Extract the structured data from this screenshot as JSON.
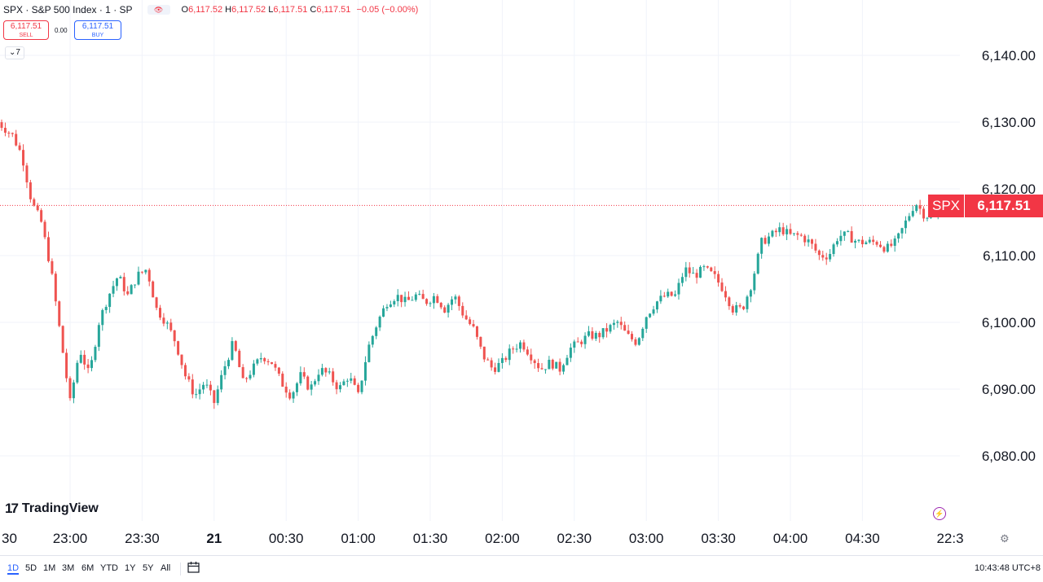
{
  "legend": {
    "symbol": "SPX · S&P 500 Index · 1 · SP",
    "open_label": "O",
    "open": "6,117.52",
    "high_label": "H",
    "high": "6,117.52",
    "low_label": "L",
    "low": "6,117.51",
    "close_label": "C",
    "close": "6,117.51",
    "change": "−0.05 (−0.00%)"
  },
  "trade": {
    "sell_price": "6,117.51",
    "sell_label": "SELL",
    "spread": "0.00",
    "buy_price": "6,117.51",
    "buy_label": "BUY"
  },
  "indicators_count": "7",
  "price_tag": {
    "symbol": "SPX",
    "value": "6,117.51"
  },
  "brand": "TradingView",
  "ranges": [
    "1D",
    "5D",
    "1M",
    "3M",
    "6M",
    "YTD",
    "1Y",
    "5Y",
    "All"
  ],
  "active_range": "1D",
  "clock": "10:43:48 UTC+8",
  "colors": {
    "up": "#26a69a",
    "down": "#ef5350",
    "price_tag": "#f23645",
    "text": "#131722",
    "grid": "#f0f3fa"
  },
  "icons": [
    "eye-icon",
    "calendar-icon",
    "lightning-icon",
    "gear-icon",
    "indicators-chevron-icon"
  ],
  "chart_data": {
    "type": "candlestick",
    "title": "SPX · S&P 500 Index · 1 · SP",
    "y_ticks": [
      6080,
      6090,
      6100,
      6110,
      6120,
      6130,
      6140
    ],
    "y_tick_labels": [
      "6,080.00",
      "6,090.00",
      "6,100.00",
      "6,110.00",
      "6,120.00",
      "6,130.00",
      "6,140.00"
    ],
    "x_ticks": [
      "30",
      "23:00",
      "23:30",
      "21",
      "00:30",
      "01:00",
      "01:30",
      "02:00",
      "02:30",
      "03:00",
      "03:30",
      "04:00",
      "04:30",
      "22:3"
    ],
    "ylim": [
      6071,
      6147
    ],
    "current_price": 6117.51,
    "grid": true,
    "close_path": [
      [
        "22:30",
        6130
      ],
      [
        "22:36",
        6128
      ],
      [
        "22:40",
        6125
      ],
      [
        "22:44",
        6118
      ],
      [
        "22:48",
        6115
      ],
      [
        "22:52",
        6108
      ],
      [
        "22:56",
        6098
      ],
      [
        "23:00",
        6088
      ],
      [
        "23:04",
        6096
      ],
      [
        "23:08",
        6092
      ],
      [
        "23:12",
        6100
      ],
      [
        "23:16",
        6104
      ],
      [
        "23:20",
        6107
      ],
      [
        "23:24",
        6104
      ],
      [
        "23:28",
        6107
      ],
      [
        "23:32",
        6108
      ],
      [
        "23:36",
        6102
      ],
      [
        "23:40",
        6100
      ],
      [
        "23:44",
        6097
      ],
      [
        "23:48",
        6092
      ],
      [
        "23:52",
        6089
      ],
      [
        "23:56",
        6091
      ],
      [
        "00:00",
        6088
      ],
      [
        "00:04",
        6093
      ],
      [
        "00:08",
        6097
      ],
      [
        "00:12",
        6091
      ],
      [
        "00:16",
        6093
      ],
      [
        "00:20",
        6095
      ],
      [
        "00:24",
        6094
      ],
      [
        "00:28",
        6091
      ],
      [
        "00:32",
        6089
      ],
      [
        "00:36",
        6092
      ],
      [
        "00:40",
        6090
      ],
      [
        "00:44",
        6093
      ],
      [
        "00:48",
        6092
      ],
      [
        "00:52",
        6090
      ],
      [
        "00:56",
        6092
      ],
      [
        "01:00",
        6089
      ],
      [
        "01:04",
        6096
      ],
      [
        "01:08",
        6100
      ],
      [
        "01:12",
        6103
      ],
      [
        "01:16",
        6104
      ],
      [
        "01:20",
        6103
      ],
      [
        "01:24",
        6104
      ],
      [
        "01:28",
        6103
      ],
      [
        "01:32",
        6104
      ],
      [
        "01:36",
        6102
      ],
      [
        "01:40",
        6104
      ],
      [
        "01:44",
        6101
      ],
      [
        "01:48",
        6099
      ],
      [
        "01:52",
        6095
      ],
      [
        "01:56",
        6093
      ],
      [
        "02:00",
        6094
      ],
      [
        "02:04",
        6096
      ],
      [
        "02:08",
        6097
      ],
      [
        "02:12",
        6095
      ],
      [
        "02:16",
        6093
      ],
      [
        "02:20",
        6094
      ],
      [
        "02:24",
        6093
      ],
      [
        "02:28",
        6096
      ],
      [
        "02:32",
        6097
      ],
      [
        "02:36",
        6098
      ],
      [
        "02:40",
        6098
      ],
      [
        "02:44",
        6099
      ],
      [
        "02:48",
        6100
      ],
      [
        "02:52",
        6098
      ],
      [
        "02:56",
        6097
      ],
      [
        "03:00",
        6101
      ],
      [
        "03:04",
        6103
      ],
      [
        "03:08",
        6104
      ],
      [
        "03:12",
        6104
      ],
      [
        "03:16",
        6108
      ],
      [
        "03:20",
        6107
      ],
      [
        "03:24",
        6108
      ],
      [
        "03:28",
        6107
      ],
      [
        "03:32",
        6105
      ],
      [
        "03:36",
        6102
      ],
      [
        "03:40",
        6102
      ],
      [
        "03:44",
        6106
      ],
      [
        "03:48",
        6112
      ],
      [
        "03:52",
        6113
      ],
      [
        "03:56",
        6114
      ],
      [
        "04:00",
        6113
      ],
      [
        "04:04",
        6113
      ],
      [
        "04:08",
        6112
      ],
      [
        "04:12",
        6110
      ],
      [
        "04:16",
        6110
      ],
      [
        "04:20",
        6113
      ],
      [
        "04:24",
        6113
      ],
      [
        "04:28",
        6112
      ],
      [
        "04:32",
        6112
      ],
      [
        "04:36",
        6112
      ],
      [
        "04:40",
        6111
      ],
      [
        "04:44",
        6112
      ],
      [
        "04:48",
        6115
      ],
      [
        "04:52",
        6118
      ],
      [
        "04:56",
        6116
      ],
      [
        "05:00",
        6116
      ],
      [
        "05:02",
        6117.51
      ]
    ]
  }
}
